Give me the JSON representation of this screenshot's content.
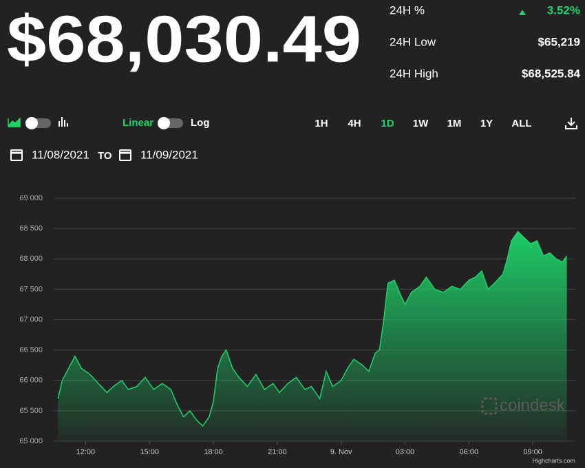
{
  "header": {
    "price": "$68,030.49"
  },
  "stats": [
    {
      "label": "24H %",
      "value": "3.52%"
    },
    {
      "label": "24H Low",
      "value": "$65,219"
    },
    {
      "label": "24H High",
      "value": "$68,525.84"
    }
  ],
  "controls": {
    "linear": "Linear",
    "log": "Log",
    "ranges": [
      "1H",
      "4H",
      "1D",
      "1W",
      "1M",
      "1Y",
      "ALL"
    ],
    "active_range": 2
  },
  "date_range": {
    "from": "11/08/2021",
    "to_label": "TO",
    "to": "11/09/2021"
  },
  "watermark": "coindesk",
  "credit": "Highcharts.com",
  "chart_data": {
    "type": "area",
    "color": "#1ed46a",
    "x": [
      10.7,
      10.9,
      11.2,
      11.5,
      11.8,
      12.2,
      12.6,
      13.0,
      13.3,
      13.7,
      14.0,
      14.4,
      14.8,
      15.2,
      15.6,
      16.0,
      16.3,
      16.6,
      16.9,
      17.2,
      17.5,
      17.8,
      18.0,
      18.2,
      18.4,
      18.6,
      18.9,
      19.2,
      19.6,
      20.0,
      20.4,
      20.8,
      21.1,
      21.5,
      21.9,
      22.3,
      22.6,
      23.0,
      23.3,
      23.6,
      24.0,
      24.3,
      24.6,
      25.0,
      25.3,
      25.6,
      25.8,
      26.0,
      26.2,
      26.5,
      26.8,
      27.0,
      27.3,
      27.7,
      28.0,
      28.4,
      28.8,
      29.2,
      29.6,
      30.0,
      30.3,
      30.6,
      30.9,
      31.2,
      31.6,
      31.8,
      32.0,
      32.3,
      32.6,
      32.9,
      33.2,
      33.5,
      33.8,
      34.1,
      34.4,
      34.6
    ],
    "values": [
      65700,
      66000,
      66200,
      66400,
      66200,
      66100,
      65950,
      65800,
      65900,
      66000,
      65850,
      65900,
      66050,
      65850,
      65950,
      65850,
      65600,
      65400,
      65500,
      65350,
      65250,
      65400,
      65650,
      66200,
      66400,
      66500,
      66200,
      66050,
      65900,
      66100,
      65850,
      65950,
      65800,
      65950,
      66050,
      65850,
      65900,
      65700,
      66150,
      65900,
      66000,
      66200,
      66350,
      66250,
      66150,
      66450,
      66500,
      67000,
      67600,
      67650,
      67400,
      67250,
      67450,
      67550,
      67700,
      67500,
      67450,
      67550,
      67500,
      67650,
      67700,
      67800,
      67500,
      67600,
      67750,
      68000,
      68300,
      68450,
      68350,
      68250,
      68300,
      68050,
      68100,
      68000,
      67950,
      68050
    ],
    "xlim": [
      10.5,
      35
    ],
    "xticks": [
      {
        "value": 12,
        "label": "12:00"
      },
      {
        "value": 15,
        "label": "15:00"
      },
      {
        "value": 18,
        "label": "18:00"
      },
      {
        "value": 21,
        "label": "21:00"
      },
      {
        "value": 24,
        "label": "9. Nov"
      },
      {
        "value": 27,
        "label": "03:00"
      },
      {
        "value": 30,
        "label": "06:00"
      },
      {
        "value": 33,
        "label": "09:00"
      }
    ],
    "ylim": [
      65000,
      69000
    ],
    "yticks": [
      {
        "value": 65000,
        "label": "65 000"
      },
      {
        "value": 65500,
        "label": "65 500"
      },
      {
        "value": 66000,
        "label": "66 000"
      },
      {
        "value": 66500,
        "label": "66 500"
      },
      {
        "value": 67000,
        "label": "67 000"
      },
      {
        "value": 67500,
        "label": "67 500"
      },
      {
        "value": 68000,
        "label": "68 000"
      },
      {
        "value": 68500,
        "label": "68 500"
      },
      {
        "value": 69000,
        "label": "69 000"
      }
    ],
    "grid": true
  }
}
